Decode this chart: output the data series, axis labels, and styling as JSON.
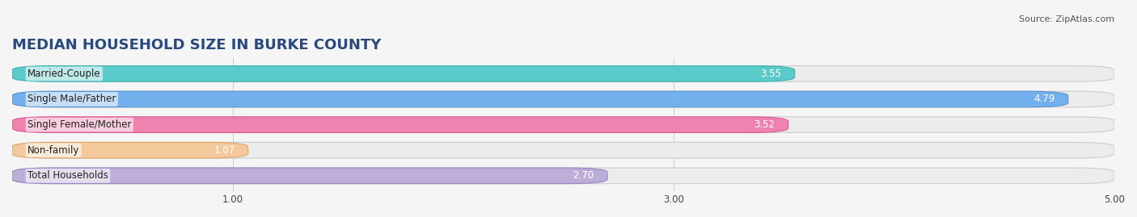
{
  "title": "MEDIAN HOUSEHOLD SIZE IN BURKE COUNTY",
  "source": "Source: ZipAtlas.com",
  "categories": [
    "Married-Couple",
    "Single Male/Father",
    "Single Female/Mother",
    "Non-family",
    "Total Households"
  ],
  "values": [
    3.55,
    4.79,
    3.52,
    1.07,
    2.7
  ],
  "bar_colors": [
    "#4fc8c8",
    "#6aabee",
    "#f07aaa",
    "#f5c897",
    "#b8a8d8"
  ],
  "bar_edge_colors": [
    "#3aafaf",
    "#5090d0",
    "#e05090",
    "#e0a060",
    "#9080c0"
  ],
  "xlim": [
    0.0,
    5.0
  ],
  "xticks": [
    1.0,
    3.0,
    5.0
  ],
  "xtick_labels": [
    "1.00",
    "3.00",
    "5.00"
  ],
  "title_color": "#2a4a7f",
  "title_fontsize": 13,
  "label_fontsize": 8.5,
  "value_fontsize": 8.5,
  "source_fontsize": 8,
  "source_color": "#555555",
  "background_color": "#f5f5f5",
  "bar_bg_color": "#ececec"
}
